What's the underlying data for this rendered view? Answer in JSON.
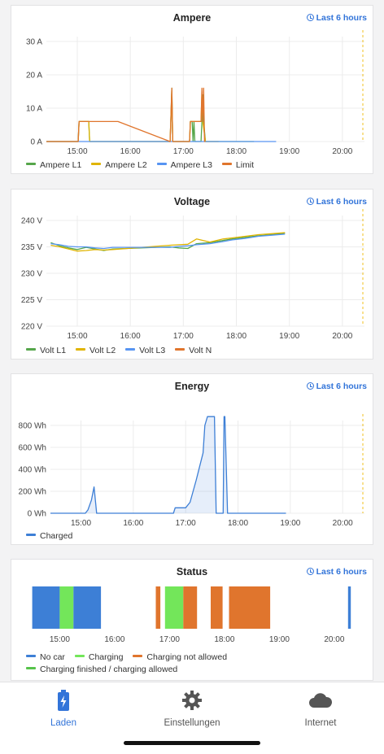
{
  "colors": {
    "l1": "#56a64b",
    "l2": "#e0b400",
    "l3": "#5794f2",
    "limit": "#e0752d",
    "nocar": "#3d7fd6",
    "charging": "#73e65a",
    "notallowed": "#e0752d",
    "finished": "#56c34a",
    "accent": "#3274d9"
  },
  "time_range_label": "Last 6 hours",
  "time_ticks": [
    "15:00",
    "16:00",
    "17:00",
    "18:00",
    "19:00",
    "20:00"
  ],
  "ampere": {
    "title": "Ampere",
    "y_ticks": [
      "30 A",
      "20 A",
      "10 A",
      "0 A"
    ],
    "legend": [
      "Ampere L1",
      "Ampere L2",
      "Ampere L3",
      "Limit"
    ]
  },
  "voltage": {
    "title": "Voltage",
    "y_ticks": [
      "240 V",
      "235 V",
      "230 V",
      "225 V",
      "220 V"
    ],
    "legend": [
      "Volt L1",
      "Volt L2",
      "Volt L3",
      "Volt N"
    ]
  },
  "energy": {
    "title": "Energy",
    "y_ticks": [
      "800 Wh",
      "600 Wh",
      "400 Wh",
      "200 Wh",
      "0 Wh"
    ],
    "legend": [
      "Charged"
    ]
  },
  "status": {
    "title": "Status",
    "legend": [
      "No car",
      "Charging",
      "Charging not allowed",
      "Charging finished / charging allowed"
    ]
  },
  "nav": {
    "items": [
      {
        "label": "Laden",
        "icon": "battery-charging-icon"
      },
      {
        "label": "Einstellungen",
        "icon": "gear-icon"
      },
      {
        "label": "Internet",
        "icon": "cloud-icon"
      }
    ]
  },
  "chart_data": [
    {
      "type": "line",
      "title": "Ampere",
      "xlabel": "",
      "ylabel": "",
      "ylim": [
        0,
        30
      ],
      "x_axis": "time (hours)",
      "x_range": [
        "14:25",
        "20:25"
      ],
      "series": [
        {
          "name": "Ampere L1",
          "points": [
            [
              "14:25",
              0
            ],
            [
              "15:01",
              0
            ],
            [
              "15:02",
              6
            ],
            [
              "15:13",
              6
            ],
            [
              "15:14",
              0
            ],
            [
              "16:45",
              0
            ],
            [
              "16:47",
              16
            ],
            [
              "16:48",
              0
            ],
            [
              "17:07",
              0
            ],
            [
              "17:08",
              6
            ],
            [
              "17:10",
              6
            ],
            [
              "17:11",
              0
            ],
            [
              "17:12",
              6
            ],
            [
              "17:13",
              0
            ],
            [
              "17:20",
              0
            ],
            [
              "17:21",
              6
            ],
            [
              "17:22",
              14
            ],
            [
              "17:23",
              6
            ],
            [
              "17:25",
              0
            ],
            [
              "17:40",
              0
            ],
            [
              "17:45",
              0
            ],
            [
              "17:55",
              0
            ],
            [
              "18:10",
              0
            ],
            [
              "18:20",
              0
            ]
          ]
        },
        {
          "name": "Ampere L2",
          "points": [
            [
              "14:25",
              0
            ],
            [
              "15:01",
              0
            ],
            [
              "15:02",
              6
            ],
            [
              "15:13",
              6
            ],
            [
              "15:14",
              0
            ],
            [
              "16:45",
              0
            ],
            [
              "16:47",
              15
            ],
            [
              "16:48",
              0
            ],
            [
              "17:07",
              0
            ],
            [
              "17:08",
              6
            ],
            [
              "17:20",
              6
            ],
            [
              "17:21",
              15
            ],
            [
              "17:22",
              6
            ],
            [
              "17:25",
              0
            ],
            [
              "17:40",
              0
            ]
          ]
        },
        {
          "name": "Ampere L3",
          "points": [
            [
              "14:25",
              0
            ],
            [
              "15:01",
              0
            ],
            [
              "15:13",
              0
            ],
            [
              "17:25",
              0
            ],
            [
              "17:40",
              0
            ],
            [
              "17:55",
              0
            ],
            [
              "18:05",
              0
            ],
            [
              "18:10",
              0
            ],
            [
              "18:20",
              0
            ],
            [
              "18:25",
              0
            ],
            [
              "18:45",
              0
            ]
          ]
        },
        {
          "name": "Limit",
          "points": [
            [
              "14:25",
              0
            ],
            [
              "15:01",
              0
            ],
            [
              "15:02",
              6
            ],
            [
              "15:46",
              6
            ],
            [
              "16:45",
              0
            ],
            [
              "16:47",
              16
            ],
            [
              "16:48",
              0
            ],
            [
              "17:07",
              0
            ],
            [
              "17:08",
              6
            ],
            [
              "17:20",
              6
            ],
            [
              "17:21",
              16
            ],
            [
              "17:22",
              6
            ],
            [
              "17:23",
              16
            ],
            [
              "17:24",
              0
            ],
            [
              "17:25",
              0
            ]
          ]
        }
      ]
    },
    {
      "type": "line",
      "title": "Voltage",
      "xlabel": "",
      "ylabel": "",
      "ylim": [
        220,
        240
      ],
      "x_axis": "time (hours)",
      "x_range": [
        "14:25",
        "20:25"
      ],
      "series": [
        {
          "name": "Volt L1",
          "points": [
            [
              "14:30",
              235.8
            ],
            [
              "14:40",
              235.2
            ],
            [
              "14:50",
              234.8
            ],
            [
              "15:00",
              234.5
            ],
            [
              "15:10",
              234.9
            ],
            [
              "15:20",
              234.6
            ],
            [
              "15:30",
              234.3
            ],
            [
              "15:40",
              234.6
            ],
            [
              "16:45",
              235.0
            ],
            [
              "16:55",
              234.8
            ],
            [
              "17:05",
              234.7
            ],
            [
              "17:15",
              235.6
            ],
            [
              "17:30",
              235.8
            ],
            [
              "17:45",
              236.2
            ],
            [
              "17:55",
              236.5
            ],
            [
              "18:10",
              236.8
            ],
            [
              "18:25",
              237.1
            ],
            [
              "18:40",
              237.3
            ],
            [
              "18:55",
              237.6
            ]
          ]
        },
        {
          "name": "Volt L2",
          "points": [
            [
              "14:30",
              235.3
            ],
            [
              "14:40",
              235.0
            ],
            [
              "14:50",
              234.6
            ],
            [
              "15:00",
              234.2
            ],
            [
              "15:10",
              234.3
            ],
            [
              "15:20",
              234.5
            ],
            [
              "15:30",
              234.4
            ],
            [
              "15:40",
              234.5
            ],
            [
              "16:45",
              235.3
            ],
            [
              "16:55",
              235.4
            ],
            [
              "17:05",
              235.5
            ],
            [
              "17:15",
              236.5
            ],
            [
              "17:30",
              235.9
            ],
            [
              "17:45",
              236.5
            ],
            [
              "17:55",
              236.7
            ],
            [
              "18:10",
              237.0
            ],
            [
              "18:25",
              237.3
            ],
            [
              "18:40",
              237.5
            ],
            [
              "18:55",
              237.7
            ]
          ]
        },
        {
          "name": "Volt L3",
          "points": [
            [
              "14:30",
              235.6
            ],
            [
              "14:40",
              235.4
            ],
            [
              "14:50",
              235.1
            ],
            [
              "15:00",
              235.0
            ],
            [
              "15:10",
              235.0
            ],
            [
              "15:20",
              234.8
            ],
            [
              "15:30",
              234.7
            ],
            [
              "15:40",
              234.9
            ],
            [
              "16:45",
              234.9
            ],
            [
              "16:55",
              235.1
            ],
            [
              "17:05",
              235.2
            ],
            [
              "17:15",
              235.4
            ],
            [
              "17:30",
              235.6
            ],
            [
              "17:45",
              236.0
            ],
            [
              "17:55",
              236.3
            ],
            [
              "18:10",
              236.6
            ],
            [
              "18:25",
              237.0
            ],
            [
              "18:40",
              237.2
            ],
            [
              "18:55",
              237.4
            ]
          ]
        },
        {
          "name": "Volt N",
          "points": []
        }
      ]
    },
    {
      "type": "area",
      "title": "Energy",
      "xlabel": "",
      "ylabel": "",
      "ylim": [
        0,
        900
      ],
      "x_axis": "time (hours)",
      "x_range": [
        "14:25",
        "20:25"
      ],
      "series": [
        {
          "name": "Charged",
          "points": [
            [
              "14:25",
              0
            ],
            [
              "15:05",
              0
            ],
            [
              "15:08",
              30
            ],
            [
              "15:12",
              120
            ],
            [
              "15:15",
              240
            ],
            [
              "15:18",
              0
            ],
            [
              "15:42",
              0
            ],
            [
              "16:46",
              0
            ],
            [
              "16:48",
              50
            ],
            [
              "17:00",
              50
            ],
            [
              "17:05",
              100
            ],
            [
              "17:12",
              300
            ],
            [
              "17:20",
              550
            ],
            [
              "17:22",
              800
            ],
            [
              "17:25",
              880
            ],
            [
              "17:33",
              880
            ],
            [
              "17:35",
              0
            ],
            [
              "17:43",
              0
            ],
            [
              "17:44",
              880
            ],
            [
              "17:45",
              880
            ],
            [
              "17:48",
              0
            ],
            [
              "18:05",
              0
            ],
            [
              "18:55",
              0
            ]
          ]
        }
      ]
    },
    {
      "type": "state-timeline",
      "title": "Status",
      "x_axis": "time (hours)",
      "x_range": [
        "14:25",
        "20:25"
      ],
      "states": [
        {
          "state": "No car",
          "from": "14:30",
          "to": "15:00"
        },
        {
          "state": "Charging",
          "from": "15:00",
          "to": "15:15"
        },
        {
          "state": "No car",
          "from": "15:15",
          "to": "15:45"
        },
        {
          "state": "Charging not allowed",
          "from": "16:45",
          "to": "16:50"
        },
        {
          "state": "Charging",
          "from": "16:55",
          "to": "17:15"
        },
        {
          "state": "Charging not allowed",
          "from": "17:15",
          "to": "17:30"
        },
        {
          "state": "Charging not allowed",
          "from": "17:45",
          "to": "17:58"
        },
        {
          "state": "Charging not allowed",
          "from": "18:05",
          "to": "18:50"
        },
        {
          "state": "No car",
          "from": "20:15",
          "to": "20:18"
        }
      ]
    }
  ]
}
